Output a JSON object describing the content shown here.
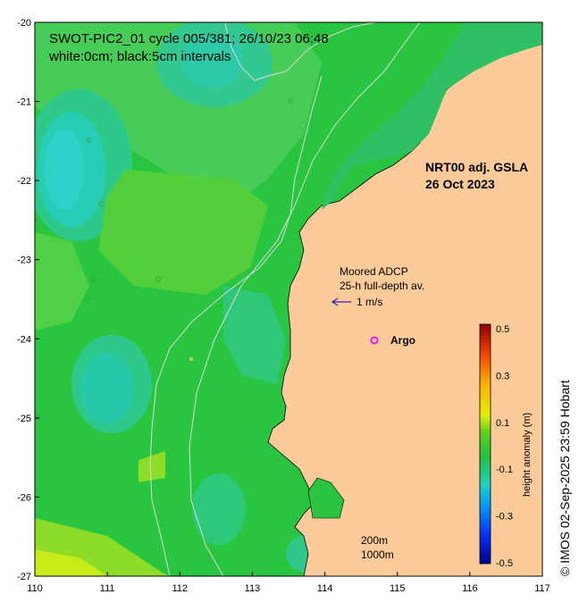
{
  "title": {
    "line1": "SWOT-PIC2_01 cycle 005/381; 26/10/23 06:48",
    "line2": "white:0cm; black:5cm intervals"
  },
  "product": {
    "line1": "NRT00 adj. GSLA",
    "line2": "26 Oct 2023"
  },
  "legend": {
    "adcp_line1": "Moored ADCP",
    "adcp_line2": "25-h full-depth av.",
    "adcp_scale": "1 m/s",
    "argo": "Argo",
    "isobath_200": "200m",
    "isobath_1000": "1000m"
  },
  "axes": {
    "x_ticks": [
      "110",
      "111",
      "112",
      "113",
      "114",
      "115",
      "116",
      "117"
    ],
    "y_ticks": [
      "-20",
      "-21",
      "-22",
      "-23",
      "-24",
      "-25",
      "-26",
      "-27"
    ]
  },
  "colorbar": {
    "label": "height anomaly (m)",
    "ticks": [
      "0.5",
      "0.3",
      "0.1",
      "-0.1",
      "-0.3",
      "-0.5"
    ]
  },
  "credit": "© IMOS 02-Sep-2025 23:59 Hobart",
  "colors": {
    "land": "#fdca9a",
    "ocean_base": "#29c440",
    "argo": "#ff00ff",
    "arrow": "#0000cc"
  }
}
